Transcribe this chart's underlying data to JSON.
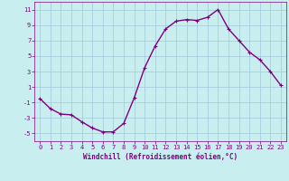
{
  "x": [
    0,
    1,
    2,
    3,
    4,
    5,
    6,
    7,
    8,
    9,
    10,
    11,
    12,
    13,
    14,
    15,
    16,
    17,
    18,
    19,
    20,
    21,
    22,
    23
  ],
  "y": [
    -0.5,
    -1.8,
    -2.5,
    -2.6,
    -3.5,
    -4.3,
    -4.8,
    -4.8,
    -3.7,
    -0.4,
    3.5,
    6.3,
    8.5,
    9.5,
    9.7,
    9.6,
    10.0,
    11.0,
    8.5,
    7.0,
    5.5,
    4.5,
    3.0,
    1.2
  ],
  "line_color": "#800080",
  "marker": "+",
  "marker_size": 3,
  "linewidth": 1.0,
  "background_color": "#c8eef0",
  "grid_color": "#a0c8d8",
  "tick_color": "#800080",
  "label_color": "#800080",
  "xlabel": "Windchill (Refroidissement éolien,°C)",
  "ylabel": "",
  "xlim": [
    -0.5,
    23.5
  ],
  "ylim": [
    -6,
    12
  ],
  "yticks": [
    -5,
    -3,
    -1,
    1,
    3,
    5,
    7,
    9,
    11
  ],
  "xticks": [
    0,
    1,
    2,
    3,
    4,
    5,
    6,
    7,
    8,
    9,
    10,
    11,
    12,
    13,
    14,
    15,
    16,
    17,
    18,
    19,
    20,
    21,
    22,
    23
  ],
  "tick_fontsize": 5.0,
  "label_fontsize": 5.5
}
